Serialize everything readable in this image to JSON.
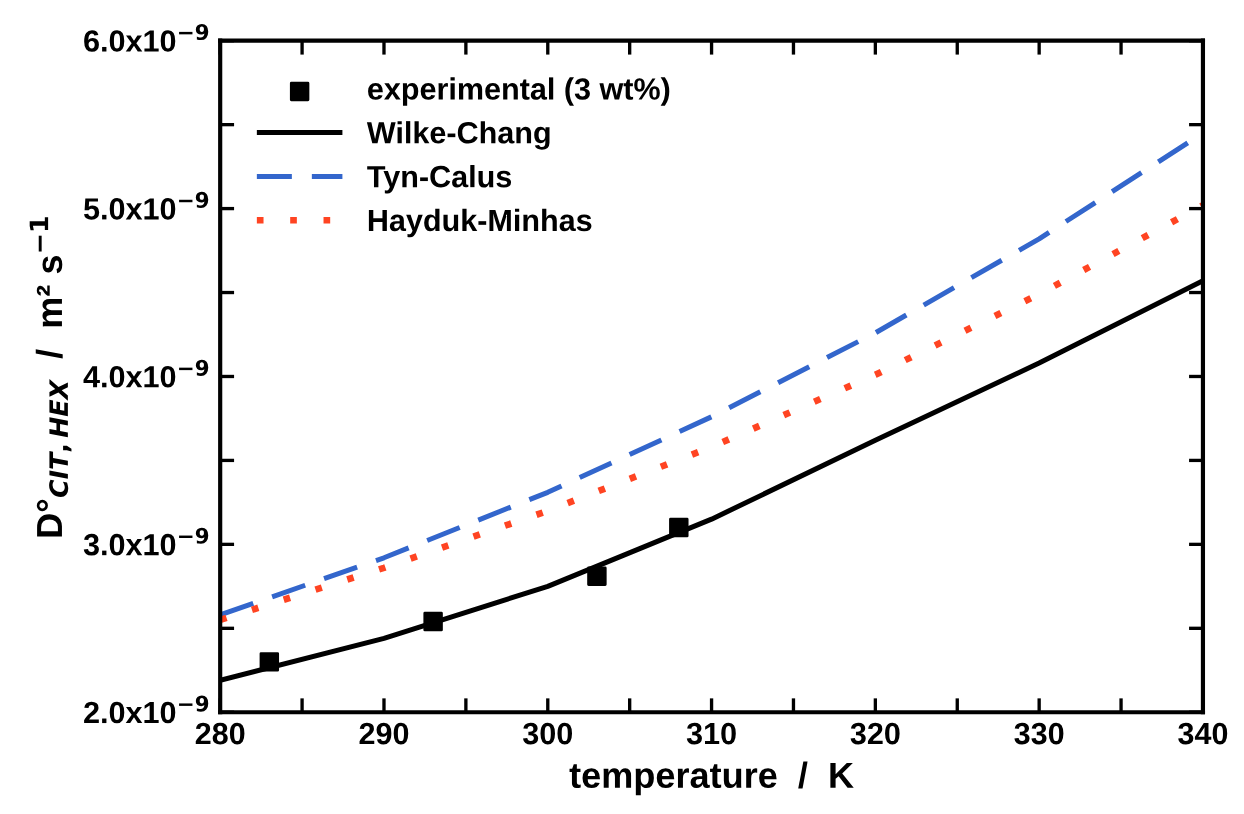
{
  "chart_data": {
    "type": "line",
    "xlabel": "temperature  /  K",
    "ylabel": "D°$_{CIT,HEX}$  /  m² s$^{−1}$",
    "xlim": [
      280,
      340
    ],
    "xticks": [
      280,
      {
        "value": 285,
        "label": null
      },
      290,
      {
        "value": 295,
        "label": null
      },
      300,
      {
        "value": 305,
        "label": null
      },
      310,
      {
        "value": 315,
        "label": null
      },
      320,
      {
        "value": 325,
        "label": null
      },
      330,
      {
        "value": 335,
        "label": null
      },
      340
    ],
    "ylim": [
      2e-09,
      6e-09
    ],
    "yticks": [
      {
        "value": 2e-09,
        "label": "2.0x10$^{−9}$"
      },
      {
        "value": 2.5e-09,
        "label": null
      },
      {
        "value": 3e-09,
        "label": "3.0x10$^{−9}$"
      },
      {
        "value": 3.5e-09,
        "label": null
      },
      {
        "value": 4e-09,
        "label": "4.0x10$^{−9}$"
      },
      {
        "value": 4.5e-09,
        "label": null
      },
      {
        "value": 5e-09,
        "label": "5.0x10$^{−9}$"
      },
      {
        "value": 5.5e-09,
        "label": null
      },
      {
        "value": 6e-09,
        "label": "6.0x10$^{−9}$"
      }
    ],
    "grid": false,
    "legend": "top left",
    "series": [
      {
        "name": "experimental (3 wt%)",
        "type": "scatter",
        "marker": "square",
        "color": "#000000",
        "x": [
          283,
          293,
          303,
          308
        ],
        "values": [
          2.3e-09,
          2.54e-09,
          2.81e-09,
          3.1e-09
        ]
      },
      {
        "name": "Wilke-Chang",
        "line_style": "solid",
        "color": "#000000",
        "x": [
          280,
          290,
          300,
          310,
          320,
          330,
          340
        ],
        "values": [
          2.19e-09,
          2.44e-09,
          2.75e-09,
          3.15e-09,
          3.62e-09,
          4.08e-09,
          4.57e-09
        ]
      },
      {
        "name": "Tyn-Calus",
        "line_style": "dashed",
        "color": "#3366cc",
        "x": [
          280,
          290,
          300,
          310,
          320,
          330,
          340
        ],
        "values": [
          2.58e-09,
          2.92e-09,
          3.31e-09,
          3.76e-09,
          4.26e-09,
          4.82e-09,
          5.45e-09
        ]
      },
      {
        "name": "Hayduk-Minhas",
        "line_style": "dotted",
        "color": "#ff4422",
        "x": [
          280,
          290,
          300,
          310,
          320,
          330,
          340
        ],
        "values": [
          2.55e-09,
          2.86e-09,
          3.2e-09,
          3.58e-09,
          4.01e-09,
          4.49e-09,
          5.02e-09
        ]
      }
    ]
  }
}
